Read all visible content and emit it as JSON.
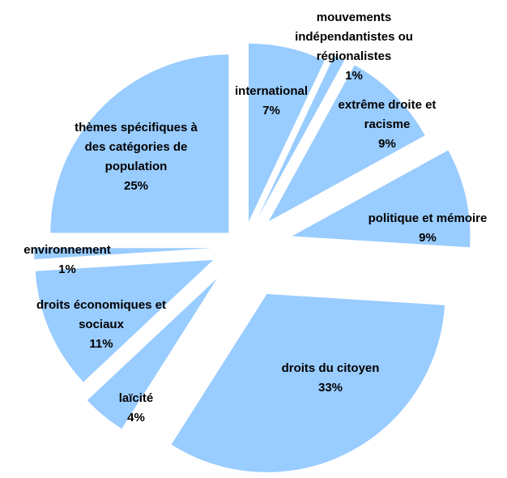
{
  "chart_data": {
    "type": "pie",
    "categories": [
      "international",
      "mouvements\nindépendantistes ou\nrégionalistes",
      "extrême droite et\nracisme",
      "politique et mémoire",
      "droits du citoyen",
      "laïcité",
      "droits économiques et\nsociaux",
      "environnement",
      "thèmes spécifiques à\ndes catégories de\npopulation"
    ],
    "values": [
      7,
      1,
      9,
      9,
      33,
      4,
      11,
      1,
      25
    ],
    "value_labels": [
      "7%",
      "1%",
      "9%",
      "9%",
      "33%",
      "4%",
      "11%",
      "1%",
      "25%"
    ],
    "color": "#99ccff"
  }
}
